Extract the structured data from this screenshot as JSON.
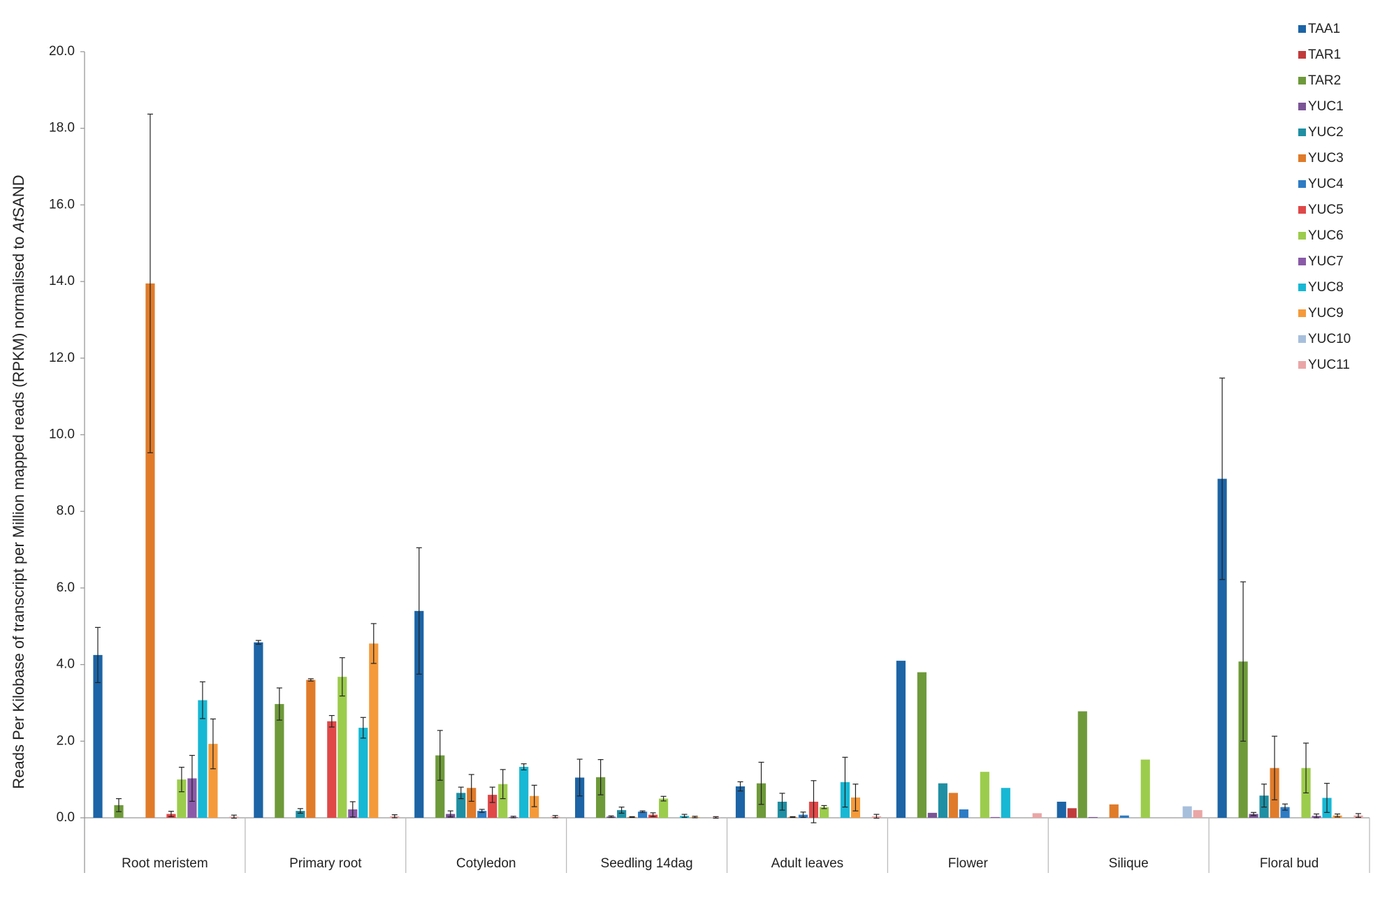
{
  "chart_data": {
    "type": "bar",
    "y_label": [
      "Reads Per Kilobase of transcript per Million mapped reads (RPKM) normalised to ",
      "At",
      "SAND"
    ],
    "categories": [
      "Root meristem",
      "Primary root",
      "Cotyledon",
      "Seedling 14dag",
      "Adult leaves",
      "Flower",
      "Silique",
      "Floral bud"
    ],
    "ylim": [
      0,
      20
    ],
    "yticks": [
      {
        "value": 0,
        "label": "0.0"
      },
      {
        "value": 2,
        "label": "2.0"
      },
      {
        "value": 4,
        "label": "4.0"
      },
      {
        "value": 6,
        "label": "6.0"
      },
      {
        "value": 8,
        "label": "8.0"
      },
      {
        "value": 10,
        "label": "10.0"
      },
      {
        "value": 12,
        "label": "12.0"
      },
      {
        "value": 14,
        "label": "14.0"
      },
      {
        "value": 16,
        "label": "16.0"
      },
      {
        "value": 18,
        "label": "18.0"
      },
      {
        "value": 20,
        "label": "20.0"
      }
    ],
    "legend": "top-right",
    "series": [
      {
        "name": "TAA1",
        "color": "#1c64a6",
        "values": [
          4.25,
          4.58,
          5.4,
          1.05,
          0.82,
          4.1,
          0.42,
          8.85
        ],
        "errors": [
          0.72,
          0.05,
          1.65,
          0.48,
          0.12,
          null,
          null,
          2.63
        ]
      },
      {
        "name": "TAR1",
        "color": "#c23b3b",
        "values": [
          0,
          0,
          0,
          0,
          0,
          0,
          0.25,
          0
        ],
        "errors": [
          null,
          null,
          null,
          null,
          null,
          null,
          null,
          null
        ]
      },
      {
        "name": "TAR2",
        "color": "#6e9a3a",
        "values": [
          0.33,
          2.97,
          1.63,
          1.06,
          0.9,
          3.8,
          2.78,
          4.08
        ],
        "errors": [
          0.17,
          0.42,
          0.65,
          0.46,
          0.55,
          null,
          null,
          2.08
        ]
      },
      {
        "name": "YUC1",
        "color": "#7b5596",
        "values": [
          0,
          0,
          0.1,
          0.03,
          0,
          0.13,
          0.02,
          0.1
        ],
        "errors": [
          null,
          null,
          0.08,
          0.02,
          null,
          null,
          null,
          0.04
        ]
      },
      {
        "name": "YUC2",
        "color": "#1f8fa3",
        "values": [
          0,
          0.18,
          0.65,
          0.2,
          0.42,
          0.9,
          0,
          0.58
        ],
        "errors": [
          null,
          0.06,
          0.15,
          0.08,
          0.22,
          null,
          null,
          0.3
        ]
      },
      {
        "name": "YUC3",
        "color": "#e07b2a",
        "values": [
          13.95,
          3.6,
          0.78,
          0.02,
          0.02,
          0.65,
          0.35,
          1.3
        ],
        "errors": [
          4.42,
          0.03,
          0.35,
          0.01,
          0.01,
          null,
          null,
          0.83
        ]
      },
      {
        "name": "YUC4",
        "color": "#2e7cc4",
        "values": [
          0,
          0,
          0.18,
          0.16,
          0.08,
          0.22,
          0.06,
          0.28
        ],
        "errors": [
          null,
          null,
          0.04,
          0.02,
          0.07,
          null,
          null,
          0.08
        ]
      },
      {
        "name": "YUC5",
        "color": "#e04848",
        "values": [
          0.1,
          2.52,
          0.6,
          0.08,
          0.42,
          0,
          0,
          0
        ],
        "errors": [
          0.07,
          0.15,
          0.2,
          0.05,
          0.55,
          null,
          null,
          null
        ]
      },
      {
        "name": "YUC6",
        "color": "#9ccc4c",
        "values": [
          1.0,
          3.68,
          0.88,
          0.5,
          0.28,
          1.2,
          1.52,
          1.3
        ],
        "errors": [
          0.32,
          0.5,
          0.38,
          0.06,
          0.04,
          null,
          null,
          0.65
        ]
      },
      {
        "name": "YUC7",
        "color": "#8a5aa8",
        "values": [
          1.03,
          0.22,
          0.02,
          0,
          0,
          0.02,
          0,
          0.05
        ],
        "errors": [
          0.6,
          0.2,
          0.02,
          null,
          null,
          null,
          null,
          0.05
        ]
      },
      {
        "name": "YUC8",
        "color": "#17b8d4",
        "values": [
          3.07,
          2.35,
          1.33,
          0.05,
          0.93,
          0.78,
          0,
          0.52
        ],
        "errors": [
          0.48,
          0.27,
          0.08,
          0.04,
          0.65,
          null,
          null,
          0.38
        ]
      },
      {
        "name": "YUC9",
        "color": "#f59a3a",
        "values": [
          1.93,
          4.55,
          0.57,
          0.02,
          0.53,
          0,
          0,
          0.06
        ],
        "errors": [
          0.65,
          0.52,
          0.28,
          0.02,
          0.35,
          null,
          null,
          0.04
        ]
      },
      {
        "name": "YUC10",
        "color": "#a8bfdc",
        "values": [
          0,
          0,
          0,
          0,
          0,
          0,
          0.3,
          0
        ],
        "errors": [
          null,
          null,
          null,
          null,
          null,
          null,
          null,
          null
        ]
      },
      {
        "name": "YUC11",
        "color": "#eaa6a6",
        "values": [
          0.03,
          0.04,
          0.03,
          0.01,
          0.04,
          0.12,
          0.2,
          0.06
        ],
        "errors": [
          0.04,
          0.04,
          0.03,
          0.02,
          0.05,
          null,
          null,
          0.05
        ]
      }
    ]
  }
}
